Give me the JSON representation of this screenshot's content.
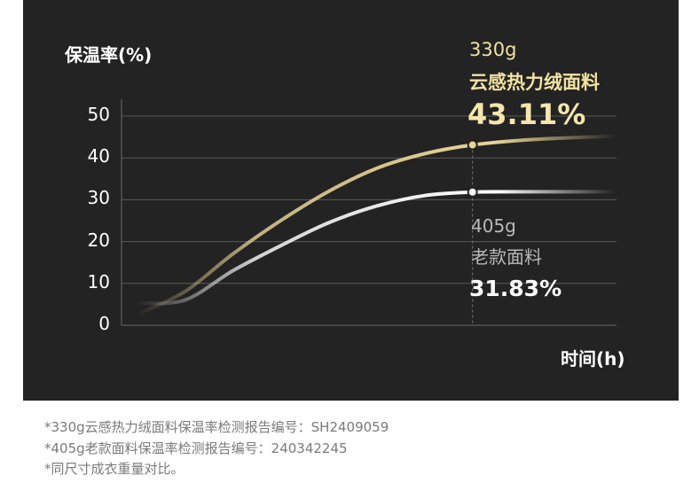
{
  "chart_data": {
    "type": "line",
    "ylabel": "保温率(%)",
    "xlabel": "时间(h)",
    "ylim": [
      0,
      50
    ],
    "yticks": [
      "0",
      "10",
      "20",
      "30",
      "40",
      "50"
    ],
    "grid": true,
    "series": [
      {
        "weight": "330g",
        "name": "云感热力绒面料",
        "value_label": "43.11%",
        "highlight": 43.11,
        "x": [
          0,
          1,
          2,
          3,
          4,
          5,
          6,
          7,
          8,
          9,
          10
        ],
        "y": [
          0,
          8,
          17,
          25,
          32,
          37.5,
          41,
          43.11,
          44.2,
          44.8,
          45.2
        ],
        "color": "#e8d596"
      },
      {
        "weight": "405g",
        "name": "老款面料",
        "value_label": "31.83%",
        "highlight": 31.83,
        "x": [
          0,
          1,
          2,
          3,
          4,
          5,
          6,
          7,
          8,
          9,
          10
        ],
        "y": [
          0,
          6,
          13,
          19,
          24.5,
          28.5,
          31,
          31.83,
          31.9,
          31.9,
          31.9
        ],
        "color": "#ffffff"
      }
    ],
    "highlight_x": 7
  },
  "notes": [
    "*330g云感热力绒面料保温率检测报告编号：SH2409059",
    "*405g老款面料保温率检测报告编号：240342245",
    "*同尺寸成衣重量对比。"
  ]
}
